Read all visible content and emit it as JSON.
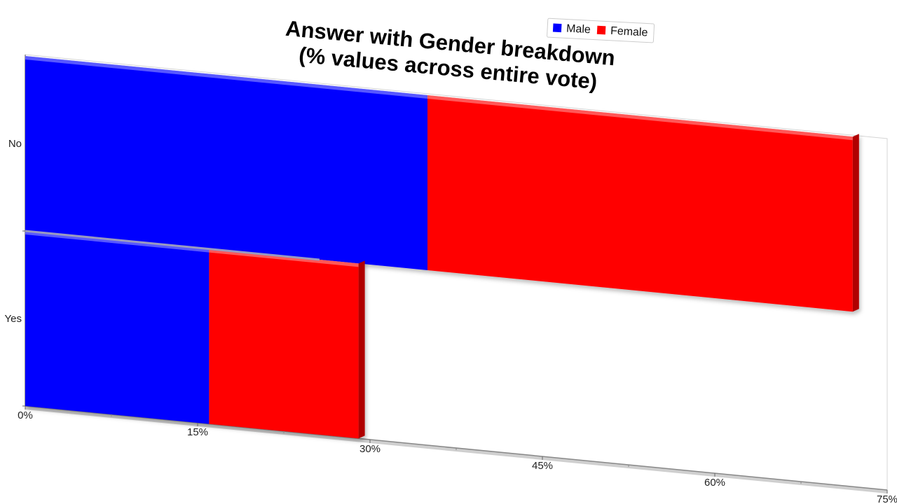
{
  "chart_data": {
    "type": "bar",
    "orientation": "horizontal",
    "stacked": true,
    "three_d": true,
    "title": "Answer with Gender breakdown",
    "subtitle": "(% values across entire vote)",
    "categories": [
      "No",
      "Yes"
    ],
    "series": [
      {
        "name": "Male",
        "color": "#0000ff",
        "values": [
          35,
          16
        ]
      },
      {
        "name": "Female",
        "color": "#ff0000",
        "values": [
          37,
          13
        ]
      }
    ],
    "x_ticks": [
      "0%",
      "15%",
      "30%",
      "45%",
      "60%",
      "75%"
    ],
    "xlim": [
      0,
      75
    ],
    "xlabel": "",
    "ylabel": "",
    "legend": "top-right",
    "grid": false
  }
}
